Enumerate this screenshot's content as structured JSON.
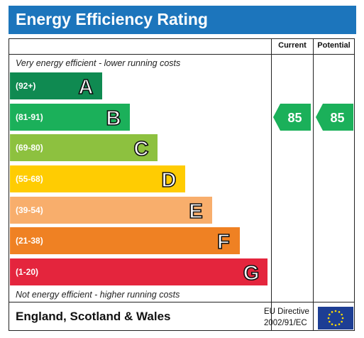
{
  "title": "Energy Efficiency Rating",
  "columns": {
    "current": "Current",
    "potential": "Potential"
  },
  "notes": {
    "top": "Very energy efficient - lower running costs",
    "bottom": "Not energy efficient - higher running costs"
  },
  "footer": {
    "region": "England, Scotland & Wales",
    "directive_line1": "EU Directive",
    "directive_line2": "2002/91/EC"
  },
  "colors": {
    "A": "#0f8a51",
    "B": "#1bb05a",
    "C": "#8dc13f",
    "D": "#ffcc02",
    "E": "#f8ae6c",
    "F": "#ef8123",
    "G": "#e4253d",
    "header": "#1c75bc",
    "eu_flag": "#1d3e94",
    "eu_stars": "#ffdd00"
  },
  "chart_data": {
    "type": "bar",
    "title": "Energy Efficiency Rating",
    "categories": [
      "A",
      "B",
      "C",
      "D",
      "E",
      "F",
      "G"
    ],
    "ranges": [
      "(92+)",
      "(81-91)",
      "(69-80)",
      "(55-68)",
      "(39-54)",
      "(21-38)",
      "(1-20)"
    ],
    "current": {
      "value": 85,
      "label": "85",
      "band": "B"
    },
    "potential": {
      "value": 85,
      "label": "85",
      "band": "B"
    }
  }
}
